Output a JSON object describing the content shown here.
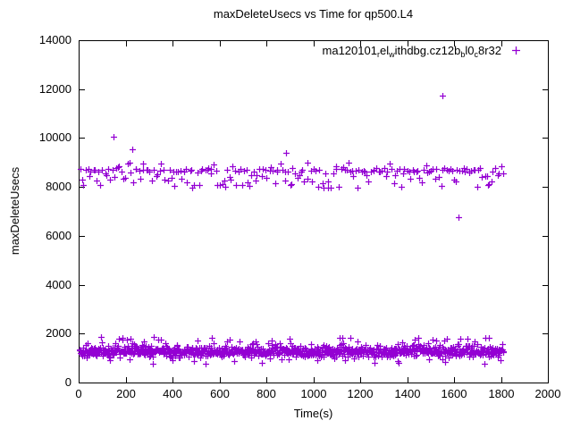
{
  "chart_data": {
    "type": "scatter",
    "title": "maxDeleteUsecs vs Time for qp500.L4",
    "xlabel": "Time(s)",
    "ylabel": "maxDeleteUsecs",
    "xlim": [
      0,
      2000
    ],
    "ylim": [
      0,
      14000
    ],
    "xticks": [
      0,
      200,
      400,
      600,
      800,
      1000,
      1200,
      1400,
      1600,
      1800,
      2000
    ],
    "yticks": [
      0,
      2000,
      4000,
      6000,
      8000,
      10000,
      12000,
      14000
    ],
    "grid": false,
    "frame_color": "#000000",
    "background_color": "#ffffff",
    "legend": {
      "position": "top-right-inside",
      "entries": [
        {
          "marker": "plus",
          "color": "#9400D3",
          "label_segments": [
            {
              "text": "ma120101",
              "sub": false
            },
            {
              "text": "r",
              "sub": true
            },
            {
              "text": "el",
              "sub": false
            },
            {
              "text": "w",
              "sub": true
            },
            {
              "text": "ithdbg.cz12b",
              "sub": false
            },
            {
              "text": "b",
              "sub": true
            },
            {
              "text": "l0",
              "sub": false
            },
            {
              "text": "c",
              "sub": true
            },
            {
              "text": "8r32",
              "sub": false
            }
          ]
        }
      ]
    },
    "series": [
      {
        "marker": "plus",
        "color": "#9400D3",
        "x_data_range_s": [
          0,
          1815
        ],
        "clusters": [
          {
            "name": "lower-band",
            "count": 950,
            "x_min": 2,
            "x_max": 1812,
            "y_components": [
              {
                "weight": 0.84,
                "dist": "normal3",
                "center": 1280,
                "spread": 200
              },
              {
                "weight": 0.11,
                "dist": "uniform",
                "min": 1480,
                "max": 1870
              },
              {
                "weight": 0.05,
                "dist": "uniform",
                "min": 750,
                "max": 1150
              }
            ]
          },
          {
            "name": "upper-band",
            "count": 225,
            "x_min": 2,
            "x_max": 1812,
            "y_components": [
              {
                "weight": 0.55,
                "dist": "normal3",
                "center": 8680,
                "spread": 100
              },
              {
                "weight": 0.37,
                "dist": "uniform",
                "min": 7950,
                "max": 8560
              },
              {
                "weight": 0.08,
                "dist": "uniform",
                "min": 8780,
                "max": 9050
              }
            ]
          }
        ],
        "outlier_points": [
          [
            150,
            10050
          ],
          [
            228,
            9550
          ],
          [
            883,
            9400
          ],
          [
            1552,
            11750
          ],
          [
            1620,
            6750
          ]
        ]
      }
    ]
  }
}
